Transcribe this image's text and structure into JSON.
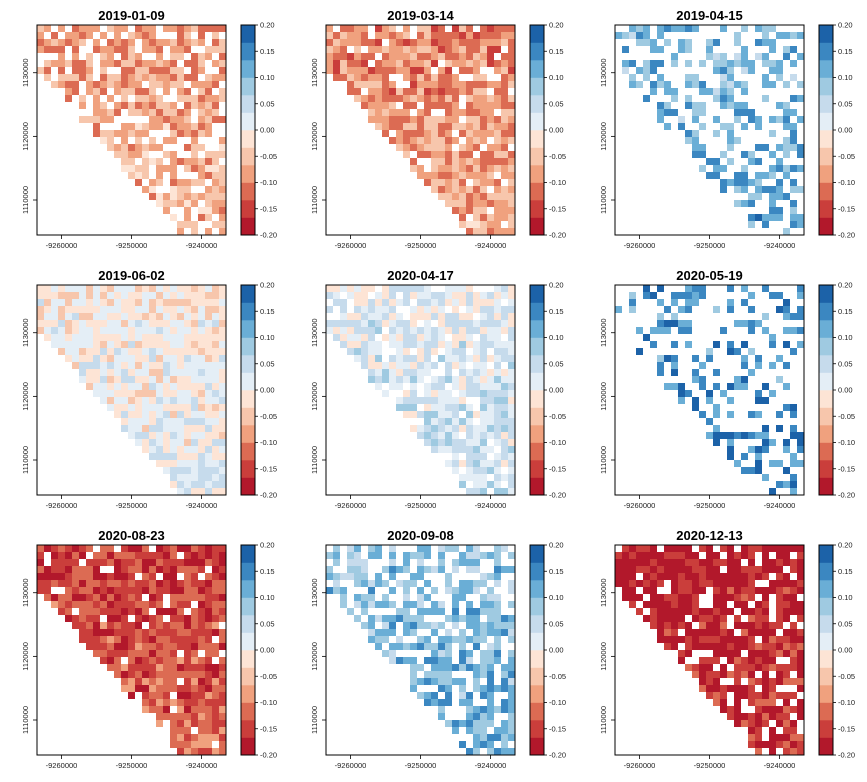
{
  "chart_data": {
    "type": "heatmap",
    "layout": {
      "rows": 3,
      "cols": 3
    },
    "x_ticks": [
      -9260000,
      -9250000,
      -9240000
    ],
    "y_ticks": [
      1110000,
      1120000,
      1130000
    ],
    "xlim": [
      -9263500,
      -9236500
    ],
    "ylim": [
      1104500,
      1137500
    ],
    "colorbar": {
      "ticks": [
        "0.20",
        "0.15",
        "0.10",
        "0.05",
        "0.00",
        "-0.05",
        "-0.10",
        "-0.15",
        "-0.20"
      ],
      "range": [
        -0.2,
        0.2
      ],
      "colors": [
        "#b2182b",
        "#ca3e3b",
        "#dc6b53",
        "#f0a17e",
        "#f7c6ac",
        "#fde4d5",
        "#e4eef6",
        "#c6dbec",
        "#9fcae1",
        "#6aaed6",
        "#3b87c1",
        "#1c62a8"
      ]
    },
    "panels": [
      {
        "title": "2019-01-09",
        "mean": -0.075,
        "coverage": 0.62
      },
      {
        "title": "2019-03-14",
        "mean": -0.09,
        "coverage": 0.74
      },
      {
        "title": "2019-04-15",
        "mean": 0.11,
        "coverage": 0.34
      },
      {
        "title": "2019-06-02",
        "mean": 0.0,
        "coverage": 0.86
      },
      {
        "title": "2020-04-17",
        "mean": 0.03,
        "coverage": 0.68
      },
      {
        "title": "2020-05-19",
        "mean": 0.14,
        "coverage": 0.2
      },
      {
        "title": "2020-08-23",
        "mean": -0.14,
        "coverage": 0.78
      },
      {
        "title": "2020-09-08",
        "mean": 0.1,
        "coverage": 0.48
      },
      {
        "title": "2020-12-13",
        "mean": -0.17,
        "coverage": 0.72
      }
    ]
  }
}
